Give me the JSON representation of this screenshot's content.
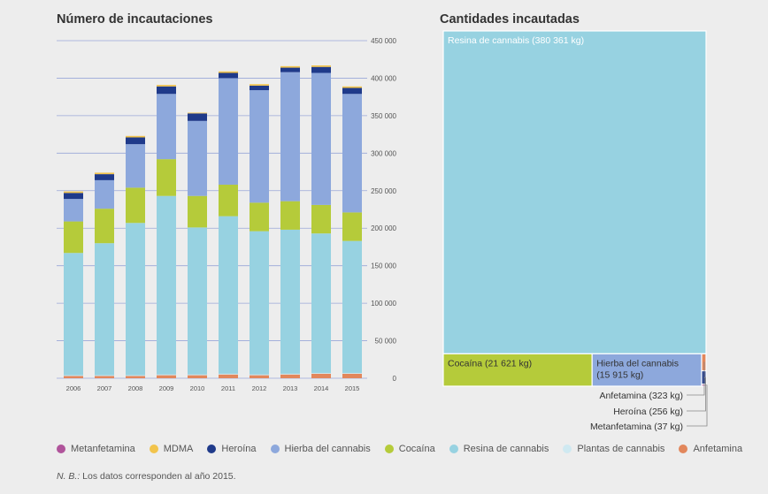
{
  "colors": {
    "Metanfetamina": "#b0549b",
    "MDMA": "#f2c44c",
    "Heroína": "#1f3a8a",
    "Hierba del cannabis": "#8da8dc",
    "Cocaína": "#b5cb3a",
    "Resina de cannabis": "#97d2e1",
    "Plantas de cannabis": "#cfe9f1",
    "Anfetamina": "#e2875c",
    "gridline": "#9aa7d8",
    "treemap_border": "#ffffff"
  },
  "legend": [
    {
      "label": "Metanfetamina",
      "key": "Metanfetamina"
    },
    {
      "label": "MDMA",
      "key": "MDMA"
    },
    {
      "label": "Heroína",
      "key": "Heroína"
    },
    {
      "label": "Hierba del cannabis",
      "key": "Hierba del cannabis"
    },
    {
      "label": "Cocaína",
      "key": "Cocaína"
    },
    {
      "label": "Resina de cannabis",
      "key": "Resina de cannabis"
    },
    {
      "label": "Plantas de cannabis",
      "key": "Plantas de cannabis"
    },
    {
      "label": "Anfetamina",
      "key": "Anfetamina"
    }
  ],
  "note": {
    "prefix": "N. B.:",
    "text": " Los datos corresponden al año 2015."
  },
  "chart_data": [
    {
      "type": "bar",
      "stacked": true,
      "title": "Número de incautaciones",
      "categories": [
        "2006",
        "2007",
        "2008",
        "2009",
        "2010",
        "2011",
        "2012",
        "2013",
        "2014",
        "2015"
      ],
      "ylim": [
        0,
        450000
      ],
      "yticks": [
        0,
        50000,
        100000,
        150000,
        200000,
        250000,
        300000,
        350000,
        400000,
        450000
      ],
      "ytick_labels": [
        "0",
        "50 000",
        "100 000",
        "150 000",
        "200 000",
        "250 000",
        "300 000",
        "350 000",
        "400 000",
        "450 000"
      ],
      "series": [
        {
          "name": "Anfetamina",
          "values": [
            3000,
            3000,
            3000,
            4000,
            4000,
            5000,
            4000,
            5000,
            6000,
            6000
          ]
        },
        {
          "name": "Plantas de cannabis",
          "values": [
            1000,
            1000,
            1000,
            1000,
            1000,
            1000,
            1000,
            1000,
            1000,
            1000
          ]
        },
        {
          "name": "Resina de cannabis",
          "values": [
            163000,
            176000,
            203000,
            238000,
            196000,
            210000,
            191000,
            192000,
            186000,
            176000
          ]
        },
        {
          "name": "Cocaína",
          "values": [
            42000,
            46000,
            47000,
            49000,
            42000,
            42000,
            38000,
            38000,
            38000,
            38000
          ]
        },
        {
          "name": "Hierba del cannabis",
          "values": [
            30000,
            38000,
            58000,
            87000,
            100000,
            142000,
            150000,
            172000,
            176000,
            158000
          ]
        },
        {
          "name": "Heroína",
          "values": [
            8000,
            8000,
            9000,
            10000,
            10000,
            7000,
            6000,
            6000,
            8000,
            8000
          ]
        },
        {
          "name": "MDMA",
          "values": [
            2000,
            2000,
            2000,
            2000,
            1000,
            2000,
            2000,
            2000,
            2000,
            2000
          ]
        },
        {
          "name": "Metanfetamina",
          "values": [
            0,
            0,
            0,
            0,
            0,
            0,
            0,
            0,
            0,
            0
          ]
        }
      ]
    },
    {
      "type": "treemap",
      "title": "Cantidades incautadas",
      "unit": "kg",
      "items": [
        {
          "name": "Resina de cannabis",
          "value": 380361,
          "label": "Resina de cannabis (380 361 kg)"
        },
        {
          "name": "Cocaína",
          "value": 21621,
          "label": "Cocaína (21 621 kg)"
        },
        {
          "name": "Hierba del cannabis",
          "value": 15915,
          "label": "Hierba del cannabis (15 915 kg)"
        },
        {
          "name": "Anfetamina",
          "value": 323,
          "label": "Anfetamina (323 kg)"
        },
        {
          "name": "Heroína",
          "value": 256,
          "label": "Heroína (256 kg)"
        },
        {
          "name": "Metanfetamina",
          "value": 37,
          "label": "Metanfetamina (37 kg)"
        }
      ]
    }
  ]
}
